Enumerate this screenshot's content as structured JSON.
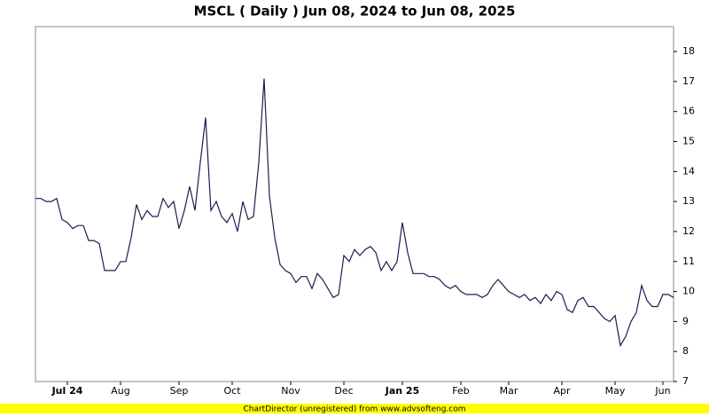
{
  "chart_data": {
    "type": "line",
    "title": "MSCL ( Daily ) Jun 08, 2024 to Jun 08, 2025",
    "footer": "ChartDirector (unregistered) from www.advsofteng.com",
    "categories": [
      null,
      null,
      null,
      null,
      null,
      null,
      "Jul 24",
      null,
      null,
      null,
      null,
      null,
      null,
      null,
      null,
      null,
      "Aug",
      null,
      null,
      null,
      null,
      null,
      null,
      null,
      null,
      null,
      null,
      "Sep",
      null,
      null,
      null,
      null,
      null,
      null,
      null,
      null,
      null,
      "Oct",
      null,
      null,
      null,
      null,
      null,
      null,
      null,
      null,
      null,
      null,
      "Nov",
      null,
      null,
      null,
      null,
      null,
      null,
      null,
      null,
      null,
      "Dec",
      null,
      null,
      null,
      null,
      null,
      null,
      null,
      null,
      null,
      null,
      "Jan 25",
      null,
      null,
      null,
      null,
      null,
      null,
      null,
      null,
      null,
      null,
      "Feb",
      null,
      null,
      null,
      null,
      null,
      null,
      null,
      null,
      "Mar",
      null,
      null,
      null,
      null,
      null,
      null,
      null,
      null,
      null,
      "Apr",
      null,
      null,
      null,
      null,
      null,
      null,
      null,
      null,
      null,
      "May",
      null,
      null,
      null,
      null,
      null,
      null,
      null,
      null,
      "Jun",
      null,
      null
    ],
    "series": [
      {
        "name": "MSCL",
        "color": "#1c1c50",
        "values": [
          13.1,
          13.1,
          13.0,
          13.0,
          13.1,
          12.4,
          12.3,
          12.1,
          12.2,
          12.2,
          11.7,
          11.7,
          11.6,
          10.7,
          10.7,
          10.7,
          11.0,
          11.0,
          11.8,
          12.9,
          12.4,
          12.7,
          12.5,
          12.5,
          13.1,
          12.8,
          13.0,
          12.1,
          12.7,
          13.5,
          12.7,
          14.3,
          15.8,
          12.7,
          13.0,
          12.5,
          12.3,
          12.6,
          12.0,
          13.0,
          12.4,
          12.5,
          14.3,
          17.1,
          13.2,
          11.8,
          10.9,
          10.7,
          10.6,
          10.3,
          10.5,
          10.5,
          10.1,
          10.6,
          10.4,
          10.1,
          9.8,
          9.9,
          11.2,
          11.0,
          11.4,
          11.2,
          11.4,
          11.5,
          11.3,
          10.7,
          11.0,
          10.7,
          11.0,
          12.3,
          11.3,
          10.6,
          10.6,
          10.6,
          10.5,
          10.5,
          10.4,
          10.2,
          10.1,
          10.2,
          10.0,
          9.9,
          9.9,
          9.9,
          9.8,
          9.9,
          10.2,
          10.4,
          10.2,
          10.0,
          9.9,
          9.8,
          9.9,
          9.7,
          9.8,
          9.6,
          9.9,
          9.7,
          10.0,
          9.9,
          9.4,
          9.3,
          9.7,
          9.8,
          9.5,
          9.5,
          9.3,
          9.1,
          9.0,
          9.2,
          8.2,
          8.5,
          9.0,
          9.3,
          10.2,
          9.7,
          9.5,
          9.5,
          9.9,
          9.9,
          9.8
        ]
      }
    ],
    "ylim": [
      7,
      18.83
    ],
    "yticks": [
      7,
      8,
      9,
      10,
      11,
      12,
      13,
      14,
      15,
      16,
      17,
      18
    ]
  }
}
